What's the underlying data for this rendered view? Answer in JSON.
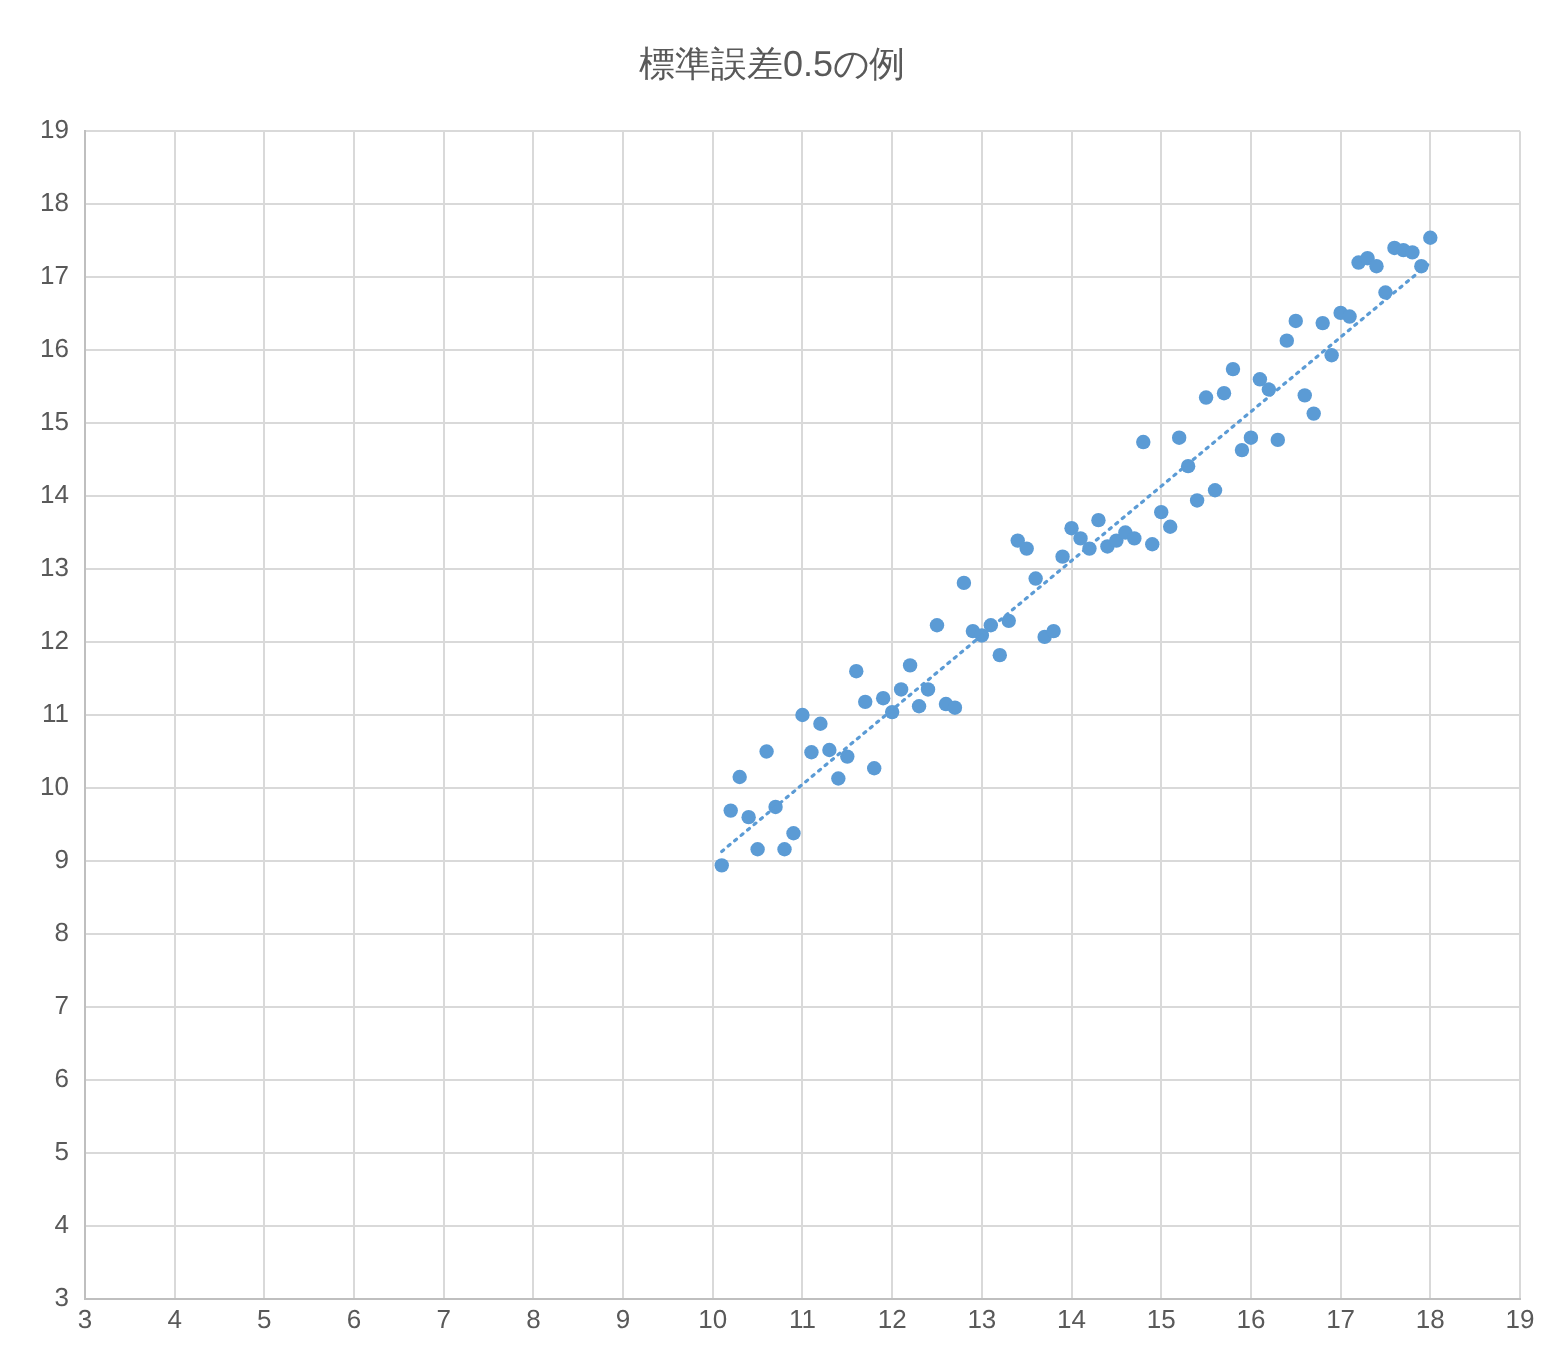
{
  "chart_data": {
    "type": "scatter",
    "title": "標準誤差0.5の例",
    "xlim": [
      3,
      19
    ],
    "ylim": [
      3,
      19
    ],
    "xticks": [
      3,
      4,
      5,
      6,
      7,
      8,
      9,
      10,
      11,
      12,
      13,
      14,
      15,
      16,
      17,
      18,
      19
    ],
    "yticks": [
      3,
      4,
      5,
      6,
      7,
      8,
      9,
      10,
      11,
      12,
      13,
      14,
      15,
      16,
      17,
      18,
      19
    ],
    "grid": true,
    "legend": false,
    "series": [
      {
        "color": "#5b9bd5",
        "marker": "circle",
        "x": [
          10.1,
          10.2,
          10.3,
          10.4,
          10.5,
          10.6,
          10.7,
          10.8,
          10.9,
          11.0,
          11.1,
          11.2,
          11.3,
          11.4,
          11.5,
          11.6,
          11.7,
          11.8,
          11.9,
          12.0,
          12.1,
          12.2,
          12.3,
          12.4,
          12.5,
          12.6,
          12.7,
          12.8,
          12.9,
          13.0,
          13.1,
          13.2,
          13.3,
          13.4,
          13.5,
          13.6,
          13.7,
          13.8,
          13.9,
          14.0,
          14.1,
          14.2,
          14.3,
          14.4,
          14.5,
          14.6,
          14.7,
          14.8,
          14.9,
          15.0,
          15.1,
          15.2,
          15.3,
          15.4,
          15.5,
          15.6,
          15.7,
          15.8,
          15.9,
          16.0,
          16.1,
          16.2,
          16.3,
          16.4,
          16.5,
          16.6,
          16.7,
          16.8,
          16.9,
          17.0,
          17.1,
          17.2,
          17.3,
          17.4,
          17.5,
          17.6,
          17.7,
          17.8,
          17.9,
          18.0
        ],
        "values": [
          8.94,
          9.69,
          10.15,
          9.6,
          9.16,
          10.5,
          9.74,
          9.16,
          9.38,
          11.0,
          10.49,
          10.88,
          10.52,
          10.13,
          10.43,
          11.6,
          11.18,
          10.27,
          11.23,
          11.04,
          11.35,
          11.68,
          11.12,
          11.35,
          12.23,
          11.15,
          11.1,
          12.81,
          12.15,
          12.09,
          12.23,
          11.82,
          12.29,
          13.39,
          13.28,
          12.87,
          12.07,
          12.15,
          13.17,
          13.56,
          13.42,
          13.28,
          13.67,
          13.31,
          13.39,
          13.5,
          13.42,
          14.74,
          13.34,
          13.78,
          13.58,
          14.8,
          14.41,
          13.94,
          15.35,
          14.08,
          15.41,
          15.74,
          14.63,
          14.8,
          15.6,
          15.46,
          14.77,
          16.13,
          16.4,
          15.38,
          15.13,
          16.37,
          15.93,
          16.51,
          16.46,
          17.2,
          17.26,
          17.15,
          16.79,
          17.4,
          17.37,
          17.34,
          17.15,
          17.54
        ]
      },
      {
        "type": "line",
        "color": "#5b9bd5",
        "marker": "none",
        "line_style": "dotted",
        "x": [
          10.1,
          18.0
        ],
        "values": [
          9.13,
          17.2
        ]
      }
    ]
  }
}
